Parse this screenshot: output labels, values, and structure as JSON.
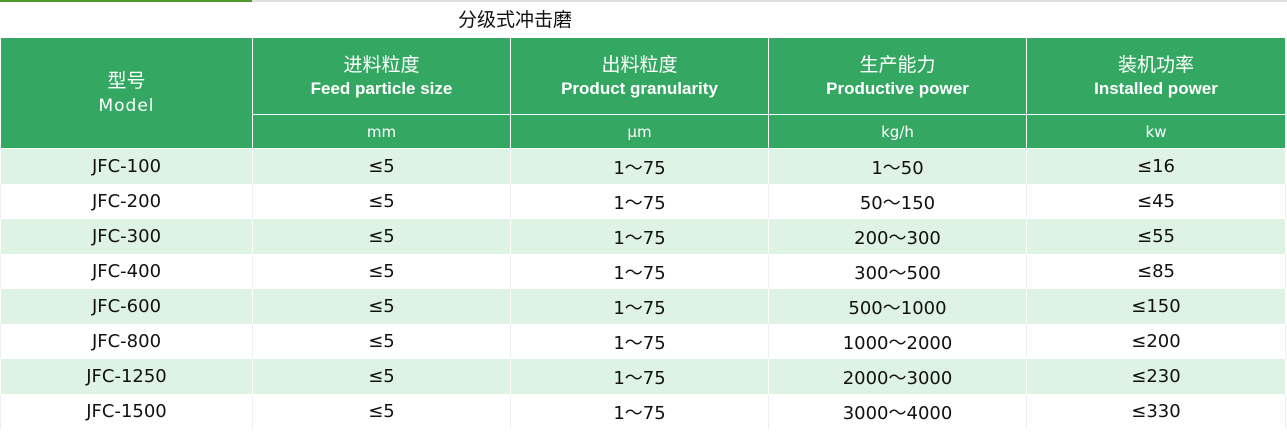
{
  "title": "分级式冲击磨",
  "colors": {
    "header": "#34a862",
    "row_alt": "#dff3e4"
  },
  "headers": [
    {
      "cn": "型号",
      "en": "Model"
    },
    {
      "cn": "进料粒度",
      "en": "Feed particle size",
      "unit": "mm"
    },
    {
      "cn": "出料粒度",
      "en": "Product granularity",
      "unit": "μm"
    },
    {
      "cn": "生产能力",
      "en": "Productive power",
      "unit": "kg/h"
    },
    {
      "cn": "装机功率",
      "en": "Installed power",
      "unit": "kw"
    }
  ],
  "rows": [
    [
      "JFC-100",
      "≤5",
      "1～75",
      "1～50",
      "≤16"
    ],
    [
      "JFC-200",
      "≤5",
      "1～75",
      "50～150",
      "≤45"
    ],
    [
      "JFC-300",
      "≤5",
      "1～75",
      "200～300",
      "≤55"
    ],
    [
      "JFC-400",
      "≤5",
      "1～75",
      "300～500",
      "≤85"
    ],
    [
      "JFC-600",
      "≤5",
      "1～75",
      "500～1000",
      "≤150"
    ],
    [
      "JFC-800",
      "≤5",
      "1～75",
      "1000～2000",
      "≤200"
    ],
    [
      "JFC-1250",
      "≤5",
      "1～75",
      "2000～3000",
      "≤230"
    ],
    [
      "JFC-1500",
      "≤5",
      "1～75",
      "3000～4000",
      "≤330"
    ]
  ]
}
